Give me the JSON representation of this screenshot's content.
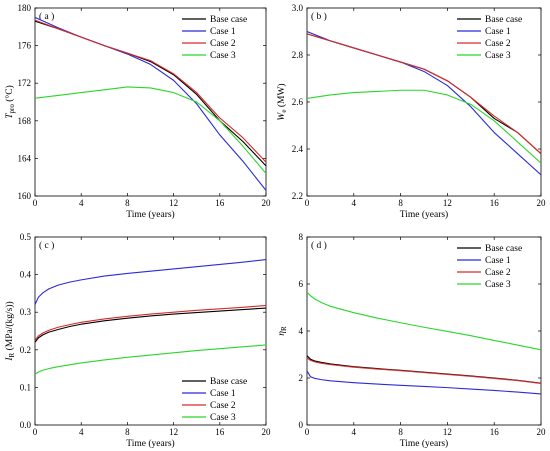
{
  "chart_data": [
    {
      "type": "line",
      "panel_label": "( a )",
      "xlabel": "Time (years)",
      "ylabel_main": "T",
      "ylabel_sub": "pro",
      "ylabel_unit": " (°C)",
      "xlim": [
        0,
        20
      ],
      "ylim": [
        160,
        180
      ],
      "xticks": [
        0,
        4,
        8,
        12,
        16,
        20
      ],
      "yticks": [
        160,
        164,
        168,
        172,
        176,
        180
      ],
      "legend_position": "top-right",
      "series": [
        {
          "name": "Base case",
          "color": "#000000",
          "x": [
            0,
            2,
            4,
            6,
            8,
            10,
            12,
            14,
            16,
            18,
            20
          ],
          "y": [
            178.6,
            177.8,
            176.9,
            176.0,
            175.2,
            174.3,
            172.9,
            170.8,
            168.0,
            165.8,
            163.2
          ]
        },
        {
          "name": "Case 1",
          "color": "#2b2bd6",
          "x": [
            0,
            2,
            4,
            6,
            8,
            10,
            12,
            14,
            16,
            18,
            20
          ],
          "y": [
            179.0,
            177.9,
            176.9,
            176.0,
            175.1,
            174.0,
            172.3,
            169.8,
            166.5,
            163.7,
            160.6
          ]
        },
        {
          "name": "Case 2",
          "color": "#d62b2b",
          "x": [
            0,
            2,
            4,
            6,
            8,
            10,
            12,
            14,
            16,
            18,
            20
          ],
          "y": [
            178.7,
            177.8,
            176.9,
            176.0,
            175.2,
            174.4,
            173.0,
            171.0,
            168.3,
            166.2,
            163.6
          ]
        },
        {
          "name": "Case 3",
          "color": "#2bd62b",
          "x": [
            0,
            2,
            4,
            6,
            8,
            10,
            12,
            14,
            16,
            18,
            20
          ],
          "y": [
            170.4,
            170.7,
            171.0,
            171.3,
            171.6,
            171.5,
            171.0,
            170.0,
            168.0,
            165.3,
            162.4
          ]
        }
      ]
    },
    {
      "type": "line",
      "panel_label": "( b )",
      "xlabel": "Time (years)",
      "ylabel_main": "W",
      "ylabel_sub": "e",
      "ylabel_unit": " (MW)",
      "xlim": [
        0,
        20
      ],
      "ylim": [
        2.2,
        3.0
      ],
      "xticks": [
        0,
        4,
        8,
        12,
        16,
        20
      ],
      "yticks": [
        2.2,
        2.4,
        2.6,
        2.8,
        3.0
      ],
      "legend_position": "top-right",
      "series": [
        {
          "name": "Base case",
          "color": "#000000",
          "x": [
            0,
            2,
            4,
            6,
            8,
            10,
            12,
            14,
            16,
            18,
            20
          ],
          "y": [
            2.89,
            2.86,
            2.83,
            2.8,
            2.77,
            2.74,
            2.69,
            2.62,
            2.53,
            2.47,
            2.38
          ]
        },
        {
          "name": "Case 1",
          "color": "#2b2bd6",
          "x": [
            0,
            2,
            4,
            6,
            8,
            10,
            12,
            14,
            16,
            18,
            20
          ],
          "y": [
            2.9,
            2.86,
            2.83,
            2.8,
            2.77,
            2.73,
            2.67,
            2.58,
            2.47,
            2.38,
            2.29
          ]
        },
        {
          "name": "Case 2",
          "color": "#d62b2b",
          "x": [
            0,
            2,
            4,
            6,
            8,
            10,
            12,
            14,
            16,
            18,
            20
          ],
          "y": [
            2.89,
            2.86,
            2.83,
            2.8,
            2.77,
            2.74,
            2.69,
            2.62,
            2.54,
            2.47,
            2.38
          ]
        },
        {
          "name": "Case 3",
          "color": "#2bd62b",
          "x": [
            0,
            2,
            4,
            6,
            8,
            10,
            12,
            14,
            16,
            18,
            20
          ],
          "y": [
            2.615,
            2.63,
            2.64,
            2.645,
            2.65,
            2.65,
            2.63,
            2.59,
            2.52,
            2.43,
            2.34
          ]
        }
      ]
    },
    {
      "type": "line",
      "panel_label": "( c )",
      "xlabel": "Time (years)",
      "ylabel_main": "I",
      "ylabel_sub": "R",
      "ylabel_unit": " (MPa/(kg/s))",
      "xlim": [
        0,
        20
      ],
      "ylim": [
        0.0,
        0.5
      ],
      "xticks": [
        0,
        4,
        8,
        12,
        16,
        20
      ],
      "yticks": [
        0.0,
        0.1,
        0.2,
        0.3,
        0.4,
        0.5
      ],
      "legend_position": "bottom-right",
      "series": [
        {
          "name": "Base case",
          "color": "#000000",
          "x": [
            0,
            0.3,
            0.7,
            1.2,
            2,
            3,
            4,
            6,
            8,
            10,
            12,
            14,
            16,
            18,
            20
          ],
          "y": [
            0.22,
            0.232,
            0.24,
            0.247,
            0.254,
            0.262,
            0.268,
            0.277,
            0.284,
            0.29,
            0.295,
            0.299,
            0.303,
            0.307,
            0.311
          ]
        },
        {
          "name": "Case 1",
          "color": "#2b2bd6",
          "x": [
            0,
            0.3,
            0.7,
            1.2,
            2,
            3,
            4,
            6,
            8,
            10,
            12,
            14,
            16,
            18,
            20
          ],
          "y": [
            0.32,
            0.34,
            0.352,
            0.362,
            0.372,
            0.38,
            0.386,
            0.396,
            0.403,
            0.409,
            0.415,
            0.421,
            0.427,
            0.433,
            0.44
          ]
        },
        {
          "name": "Case 2",
          "color": "#d62b2b",
          "x": [
            0,
            0.3,
            0.7,
            1.2,
            2,
            3,
            4,
            6,
            8,
            10,
            12,
            14,
            16,
            18,
            20
          ],
          "y": [
            0.225,
            0.237,
            0.245,
            0.252,
            0.26,
            0.267,
            0.273,
            0.282,
            0.289,
            0.295,
            0.3,
            0.305,
            0.309,
            0.313,
            0.318
          ]
        },
        {
          "name": "Case 3",
          "color": "#2bd62b",
          "x": [
            0,
            0.3,
            0.7,
            1.2,
            2,
            3,
            4,
            6,
            8,
            10,
            12,
            14,
            16,
            18,
            20
          ],
          "y": [
            0.135,
            0.141,
            0.146,
            0.15,
            0.155,
            0.16,
            0.165,
            0.173,
            0.18,
            0.186,
            0.192,
            0.198,
            0.203,
            0.208,
            0.213
          ]
        }
      ]
    },
    {
      "type": "line",
      "panel_label": "( d )",
      "xlabel": "Time (years)",
      "ylabel_main": "η",
      "ylabel_sub": "R",
      "ylabel_unit": "",
      "xlim": [
        0,
        20
      ],
      "ylim": [
        0,
        8
      ],
      "xticks": [
        0,
        4,
        8,
        12,
        16,
        20
      ],
      "yticks": [
        0,
        2,
        4,
        6,
        8
      ],
      "legend_position": "top-right",
      "series": [
        {
          "name": "Base case",
          "color": "#000000",
          "x": [
            0,
            0.3,
            0.7,
            1.2,
            2,
            4,
            6,
            8,
            10,
            12,
            14,
            16,
            18,
            20
          ],
          "y": [
            2.95,
            2.8,
            2.72,
            2.67,
            2.6,
            2.48,
            2.4,
            2.33,
            2.25,
            2.17,
            2.09,
            2.0,
            1.9,
            1.78
          ]
        },
        {
          "name": "Case 1",
          "color": "#2b2bd6",
          "x": [
            0,
            0.3,
            0.7,
            1.2,
            2,
            4,
            6,
            8,
            10,
            12,
            14,
            16,
            18,
            20
          ],
          "y": [
            2.3,
            2.05,
            1.98,
            1.93,
            1.88,
            1.8,
            1.74,
            1.69,
            1.64,
            1.59,
            1.53,
            1.47,
            1.4,
            1.32
          ]
        },
        {
          "name": "Case 2",
          "color": "#d62b2b",
          "x": [
            0,
            0.3,
            0.7,
            1.2,
            2,
            4,
            6,
            8,
            10,
            12,
            14,
            16,
            18,
            20
          ],
          "y": [
            2.85,
            2.75,
            2.68,
            2.63,
            2.57,
            2.46,
            2.38,
            2.31,
            2.23,
            2.15,
            2.07,
            1.98,
            1.89,
            1.77
          ]
        },
        {
          "name": "Case 3",
          "color": "#2bd62b",
          "x": [
            0,
            0.3,
            0.7,
            1.2,
            2,
            4,
            6,
            8,
            10,
            12,
            14,
            16,
            18,
            20
          ],
          "y": [
            5.65,
            5.5,
            5.35,
            5.22,
            5.05,
            4.78,
            4.55,
            4.35,
            4.16,
            3.98,
            3.8,
            3.6,
            3.4,
            3.2
          ]
        }
      ]
    }
  ]
}
